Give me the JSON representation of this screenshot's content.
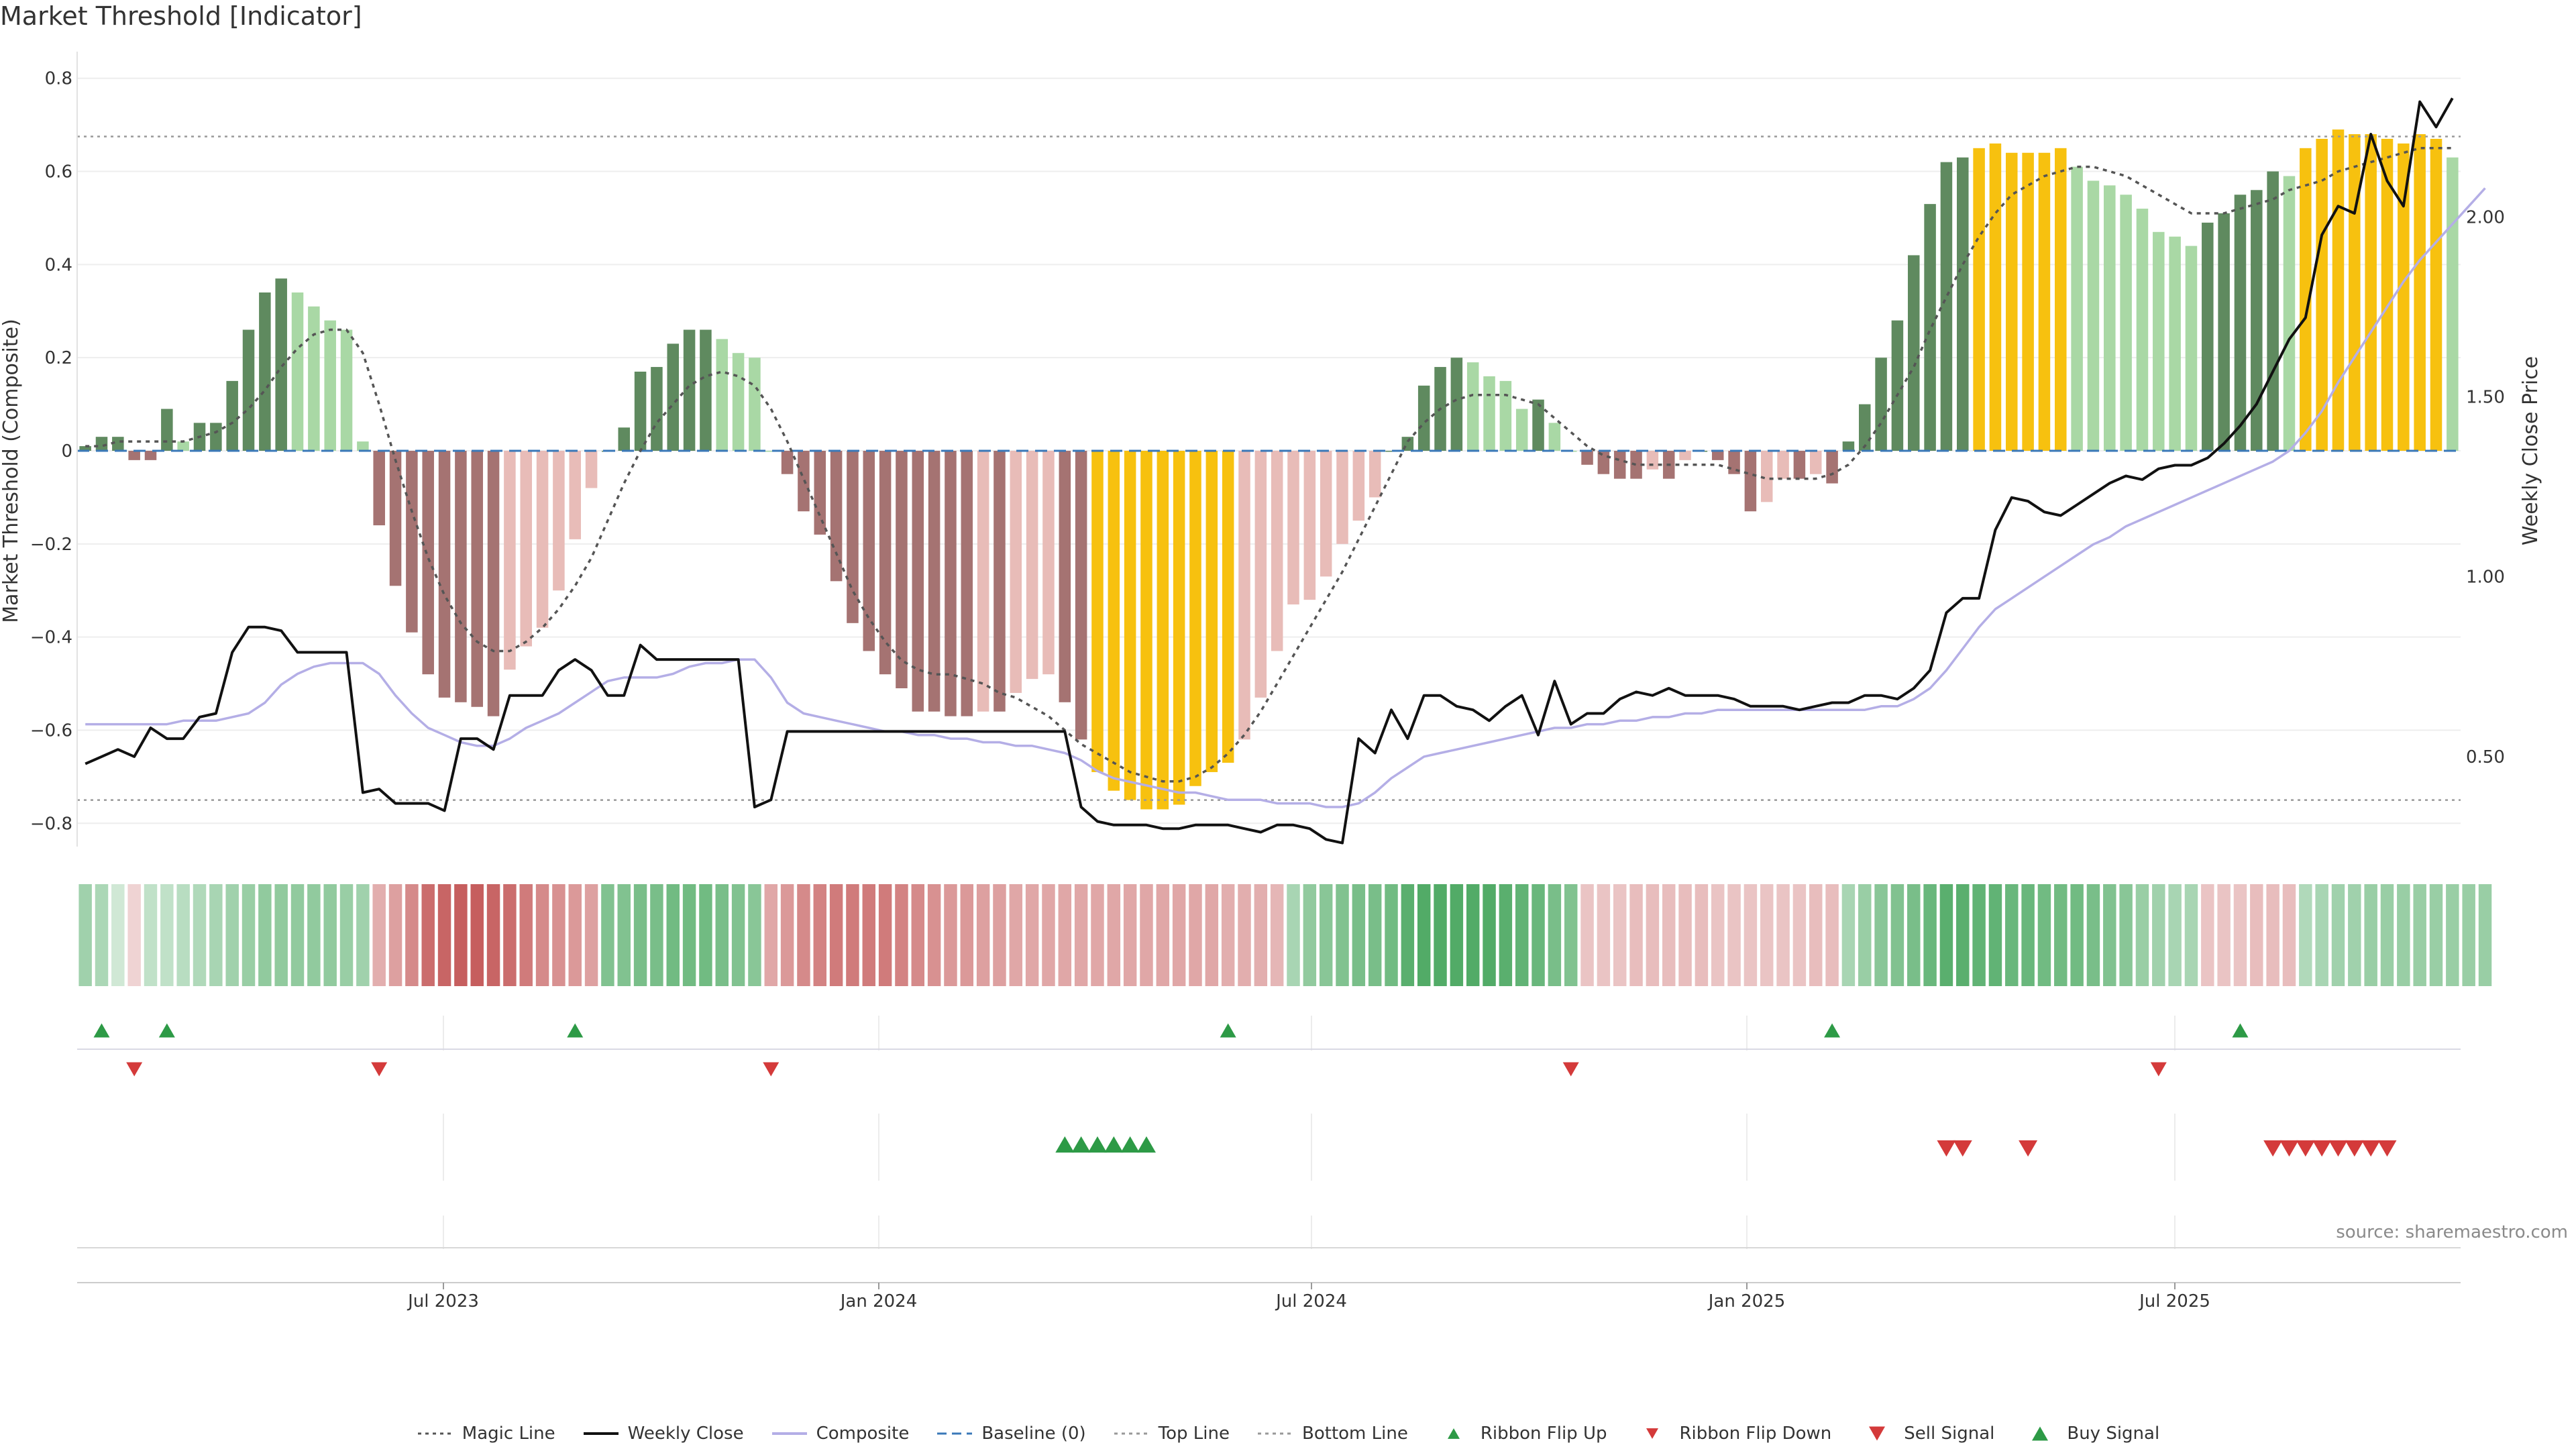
{
  "title": "Market Threshold [Indicator]",
  "source": "source: sharemaestro.com",
  "colors": {
    "bull_strong": "#5f8a5f",
    "bull_weak": "#a9d8a5",
    "bear_strong": "#a57372",
    "bear_weak": "#e8bcb8",
    "extreme": "#f7c10f",
    "close_line": "#111111",
    "composite_line": "#b4aee6",
    "baseline": "#3a78b8",
    "ref_lines": "#999999",
    "magic_line": "#555555",
    "up_marker": "#2d9a46",
    "down_marker": "#d43a3a"
  },
  "chart_data": {
    "type": "bar",
    "title": "Market Threshold [Indicator]",
    "x_ticks": [
      "Jul 2023",
      "Jan 2024",
      "Jul 2024",
      "Jan 2025",
      "Jul 2025"
    ],
    "ylabel_left": "Market Threshold (Composite)",
    "ylabel_right": "Weekly Close Price",
    "ylim_left": [
      -0.85,
      0.85
    ],
    "yticks_left": [
      "0.8",
      "0.6",
      "0.4",
      "0.2",
      "0",
      "−0.2",
      "−0.4",
      "−0.6",
      "−0.8"
    ],
    "ylim_right": [
      0.25,
      2.45
    ],
    "yticks_right": [
      "2.00",
      "1.50",
      "1.00",
      "0.50"
    ],
    "top_line": 0.675,
    "bottom_line": -0.75,
    "grid": true,
    "legend_position": "bottom-center",
    "bar_category_rule": "yellow when |value| >= 0.64 (extreme); dark green when rising and positive; light green when falling and positive; dark red when falling and negative; light red when rising and negative",
    "composite_bars": [
      0.01,
      0.03,
      0.03,
      -0.02,
      -0.02,
      0.09,
      0.02,
      0.06,
      0.06,
      0.15,
      0.26,
      0.34,
      0.37,
      0.34,
      0.31,
      0.28,
      0.26,
      0.02,
      -0.16,
      -0.29,
      -0.39,
      -0.48,
      -0.53,
      -0.54,
      -0.55,
      -0.57,
      -0.47,
      -0.42,
      -0.38,
      -0.3,
      -0.19,
      -0.08,
      0.0,
      0.05,
      0.17,
      0.18,
      0.23,
      0.26,
      0.26,
      0.24,
      0.21,
      0.2,
      0.0,
      -0.05,
      -0.13,
      -0.18,
      -0.28,
      -0.37,
      -0.43,
      -0.48,
      -0.51,
      -0.56,
      -0.56,
      -0.57,
      -0.57,
      -0.56,
      -0.56,
      -0.52,
      -0.49,
      -0.48,
      -0.54,
      -0.62,
      -0.69,
      -0.73,
      -0.75,
      -0.77,
      -0.77,
      -0.76,
      -0.72,
      -0.69,
      -0.67,
      -0.62,
      -0.53,
      -0.43,
      -0.33,
      -0.32,
      -0.27,
      -0.2,
      -0.15,
      -0.1,
      0.0,
      0.03,
      0.14,
      0.18,
      0.2,
      0.19,
      0.16,
      0.15,
      0.09,
      0.11,
      0.06,
      0.0,
      -0.03,
      -0.05,
      -0.06,
      -0.06,
      -0.04,
      -0.06,
      -0.02,
      0.0,
      -0.02,
      -0.05,
      -0.13,
      -0.11,
      -0.06,
      -0.06,
      -0.05,
      -0.07,
      0.02,
      0.1,
      0.2,
      0.28,
      0.42,
      0.53,
      0.62,
      0.63,
      0.65,
      0.66,
      0.64,
      0.64,
      0.64,
      0.65,
      0.61,
      0.58,
      0.57,
      0.55,
      0.52,
      0.47,
      0.46,
      0.44,
      0.49,
      0.51,
      0.55,
      0.56,
      0.6,
      0.59,
      0.65,
      0.67,
      0.69,
      0.68,
      0.68,
      0.67,
      0.66,
      0.68,
      0.67,
      0.63
    ],
    "series": [
      {
        "name": "Magic Line",
        "values": [
          0.01,
          0.01,
          0.02,
          0.02,
          0.02,
          0.02,
          0.02,
          0.03,
          0.04,
          0.06,
          0.09,
          0.13,
          0.18,
          0.22,
          0.25,
          0.26,
          0.26,
          0.21,
          0.1,
          -0.02,
          -0.13,
          -0.23,
          -0.31,
          -0.37,
          -0.41,
          -0.43,
          -0.43,
          -0.41,
          -0.38,
          -0.34,
          -0.29,
          -0.23,
          -0.15,
          -0.07,
          0.0,
          0.06,
          0.1,
          0.14,
          0.16,
          0.17,
          0.16,
          0.14,
          0.09,
          0.02,
          -0.06,
          -0.14,
          -0.22,
          -0.3,
          -0.36,
          -0.41,
          -0.45,
          -0.47,
          -0.48,
          -0.48,
          -0.49,
          -0.5,
          -0.52,
          -0.53,
          -0.55,
          -0.57,
          -0.6,
          -0.63,
          -0.65,
          -0.67,
          -0.69,
          -0.7,
          -0.71,
          -0.71,
          -0.7,
          -0.68,
          -0.65,
          -0.61,
          -0.56,
          -0.5,
          -0.44,
          -0.38,
          -0.32,
          -0.26,
          -0.19,
          -0.12,
          -0.05,
          0.02,
          0.06,
          0.09,
          0.11,
          0.12,
          0.12,
          0.12,
          0.11,
          0.1,
          0.07,
          0.04,
          0.01,
          -0.01,
          -0.02,
          -0.03,
          -0.03,
          -0.03,
          -0.03,
          -0.03,
          -0.03,
          -0.04,
          -0.05,
          -0.06,
          -0.06,
          -0.06,
          -0.06,
          -0.05,
          -0.03,
          0.01,
          0.06,
          0.12,
          0.18,
          0.26,
          0.33,
          0.4,
          0.46,
          0.51,
          0.55,
          0.57,
          0.59,
          0.6,
          0.61,
          0.61,
          0.6,
          0.59,
          0.57,
          0.55,
          0.53,
          0.51,
          0.51,
          0.51,
          0.52,
          0.53,
          0.54,
          0.56,
          0.57,
          0.58,
          0.6,
          0.61,
          0.62,
          0.63,
          0.64,
          0.65,
          0.65,
          0.65
        ]
      },
      {
        "name": "Weekly Close",
        "values": [
          0.48,
          0.5,
          0.52,
          0.5,
          0.58,
          0.55,
          0.55,
          0.61,
          0.62,
          0.79,
          0.86,
          0.86,
          0.85,
          0.79,
          0.79,
          0.79,
          0.79,
          0.4,
          0.41,
          0.37,
          0.37,
          0.37,
          0.35,
          0.55,
          0.55,
          0.52,
          0.67,
          0.67,
          0.67,
          0.74,
          0.77,
          0.74,
          0.67,
          0.67,
          0.81,
          0.77,
          0.77,
          0.77,
          0.77,
          0.77,
          0.77,
          0.36,
          0.38,
          0.57,
          0.57,
          0.57,
          0.57,
          0.57,
          0.57,
          0.57,
          0.57,
          0.57,
          0.57,
          0.57,
          0.57,
          0.57,
          0.57,
          0.57,
          0.57,
          0.57,
          0.57,
          0.36,
          0.32,
          0.31,
          0.31,
          0.31,
          0.3,
          0.3,
          0.31,
          0.31,
          0.31,
          0.3,
          0.29,
          0.31,
          0.31,
          0.3,
          0.27,
          0.26,
          0.55,
          0.51,
          0.63,
          0.55,
          0.67,
          0.67,
          0.64,
          0.63,
          0.6,
          0.64,
          0.67,
          0.56,
          0.71,
          0.59,
          0.62,
          0.62,
          0.66,
          0.68,
          0.67,
          0.69,
          0.67,
          0.67,
          0.67,
          0.66,
          0.64,
          0.64,
          0.64,
          0.63,
          0.64,
          0.65,
          0.65,
          0.67,
          0.67,
          0.66,
          0.69,
          0.74,
          0.9,
          0.94,
          0.94,
          1.13,
          1.22,
          1.21,
          1.18,
          1.17,
          1.2,
          1.23,
          1.26,
          1.28,
          1.27,
          1.3,
          1.31,
          1.31,
          1.33,
          1.37,
          1.42,
          1.48,
          1.57,
          1.66,
          1.72,
          1.95,
          2.03,
          2.01,
          2.23,
          2.1,
          2.03,
          2.32,
          2.25,
          2.33
        ]
      },
      {
        "name": "Composite",
        "values": [
          0.59,
          0.59,
          0.59,
          0.59,
          0.59,
          0.59,
          0.6,
          0.6,
          0.6,
          0.61,
          0.62,
          0.65,
          0.7,
          0.73,
          0.75,
          0.76,
          0.76,
          0.76,
          0.73,
          0.67,
          0.62,
          0.58,
          0.56,
          0.54,
          0.53,
          0.53,
          0.55,
          0.58,
          0.6,
          0.62,
          0.65,
          0.68,
          0.71,
          0.72,
          0.72,
          0.72,
          0.73,
          0.75,
          0.76,
          0.76,
          0.77,
          0.77,
          0.72,
          0.65,
          0.62,
          0.61,
          0.6,
          0.59,
          0.58,
          0.57,
          0.57,
          0.56,
          0.56,
          0.55,
          0.55,
          0.54,
          0.54,
          0.53,
          0.53,
          0.52,
          0.51,
          0.49,
          0.46,
          0.44,
          0.43,
          0.42,
          0.41,
          0.4,
          0.4,
          0.39,
          0.38,
          0.38,
          0.38,
          0.37,
          0.37,
          0.37,
          0.36,
          0.36,
          0.37,
          0.4,
          0.44,
          0.47,
          0.5,
          0.51,
          0.52,
          0.53,
          0.54,
          0.55,
          0.56,
          0.57,
          0.58,
          0.58,
          0.59,
          0.59,
          0.6,
          0.6,
          0.61,
          0.61,
          0.62,
          0.62,
          0.63,
          0.63,
          0.63,
          0.63,
          0.63,
          0.63,
          0.63,
          0.63,
          0.63,
          0.63,
          0.64,
          0.64,
          0.66,
          0.69,
          0.74,
          0.8,
          0.86,
          0.91,
          0.94,
          0.97,
          1.0,
          1.03,
          1.06,
          1.09,
          1.11,
          1.14,
          1.16,
          1.18,
          1.2,
          1.22,
          1.24,
          1.26,
          1.28,
          1.3,
          1.32,
          1.35,
          1.4,
          1.46,
          1.54,
          1.61,
          1.68,
          1.75,
          1.82,
          1.88,
          1.93,
          1.98,
          2.03,
          2.08
        ]
      },
      {
        "name": "Baseline (0)",
        "values": [
          0
        ]
      },
      {
        "name": "Top Line",
        "values": [
          0.675
        ]
      },
      {
        "name": "Bottom Line",
        "values": [
          -0.75
        ]
      }
    ],
    "ribbon": [
      0.35,
      0.28,
      0.05,
      -0.05,
      0.15,
      0.15,
      0.2,
      0.25,
      0.3,
      0.35,
      0.4,
      0.45,
      0.45,
      0.45,
      0.45,
      0.45,
      0.4,
      0.35,
      -0.3,
      -0.4,
      -0.55,
      -0.75,
      -0.8,
      -0.85,
      -0.85,
      -0.8,
      -0.75,
      -0.65,
      -0.55,
      -0.5,
      -0.45,
      -0.4,
      0.55,
      0.55,
      0.6,
      0.6,
      0.65,
      0.65,
      0.65,
      0.6,
      0.55,
      0.5,
      -0.35,
      -0.45,
      -0.55,
      -0.6,
      -0.65,
      -0.65,
      -0.65,
      -0.65,
      -0.6,
      -0.55,
      -0.5,
      -0.45,
      -0.45,
      -0.4,
      -0.4,
      -0.35,
      -0.35,
      -0.35,
      -0.35,
      -0.35,
      -0.35,
      -0.35,
      -0.35,
      -0.35,
      -0.35,
      -0.35,
      -0.35,
      -0.35,
      -0.3,
      -0.3,
      -0.3,
      -0.25,
      0.3,
      0.45,
      0.5,
      0.55,
      0.6,
      0.6,
      0.65,
      0.8,
      0.85,
      0.85,
      0.85,
      0.85,
      0.85,
      0.8,
      0.75,
      0.7,
      0.6,
      0.55,
      -0.15,
      -0.15,
      -0.15,
      -0.2,
      -0.2,
      -0.2,
      -0.2,
      -0.2,
      -0.15,
      -0.15,
      -0.15,
      -0.15,
      -0.15,
      -0.15,
      -0.2,
      -0.2,
      0.3,
      0.4,
      0.5,
      0.55,
      0.6,
      0.7,
      0.8,
      0.8,
      0.75,
      0.75,
      0.7,
      0.7,
      0.65,
      0.65,
      0.65,
      0.6,
      0.55,
      0.5,
      0.4,
      0.35,
      0.3,
      0.3,
      -0.15,
      -0.15,
      -0.15,
      -0.2,
      -0.2,
      -0.2,
      0.25,
      0.3,
      0.35,
      0.35,
      0.4,
      0.4,
      0.4,
      0.4,
      0.4,
      0.4,
      0.4,
      0.4
    ],
    "ribbon_flip_up_weeks": [
      1,
      5,
      30,
      70,
      107,
      132
    ],
    "ribbon_flip_down_weeks": [
      3,
      18,
      42,
      91,
      127
    ],
    "buy_signal_weeks": [
      60,
      61,
      62,
      63,
      64,
      65
    ],
    "sell_signal_weeks": [
      114,
      115,
      119,
      134,
      135,
      136,
      137,
      138,
      139,
      140,
      141
    ]
  },
  "legend": [
    {
      "label": "Magic Line",
      "style": "dotted-line",
      "color": "#555555"
    },
    {
      "label": "Weekly Close",
      "style": "solid-line",
      "color": "#111111"
    },
    {
      "label": "Composite",
      "style": "solid-line",
      "color": "#b4aee6"
    },
    {
      "label": "Baseline (0)",
      "style": "dashed-line",
      "color": "#3a78b8"
    },
    {
      "label": "Top Line",
      "style": "dotted-line",
      "color": "#999999"
    },
    {
      "label": "Bottom Line",
      "style": "dotted-line",
      "color": "#999999"
    },
    {
      "label": "Ribbon Flip Up",
      "style": "triangle-up-small",
      "color": "#2d9a46"
    },
    {
      "label": "Ribbon Flip Down",
      "style": "triangle-down-small",
      "color": "#d43a3a"
    },
    {
      "label": "Sell Signal",
      "style": "triangle-down",
      "color": "#d43a3a"
    },
    {
      "label": "Buy Signal",
      "style": "triangle-up",
      "color": "#2d9a46"
    }
  ]
}
